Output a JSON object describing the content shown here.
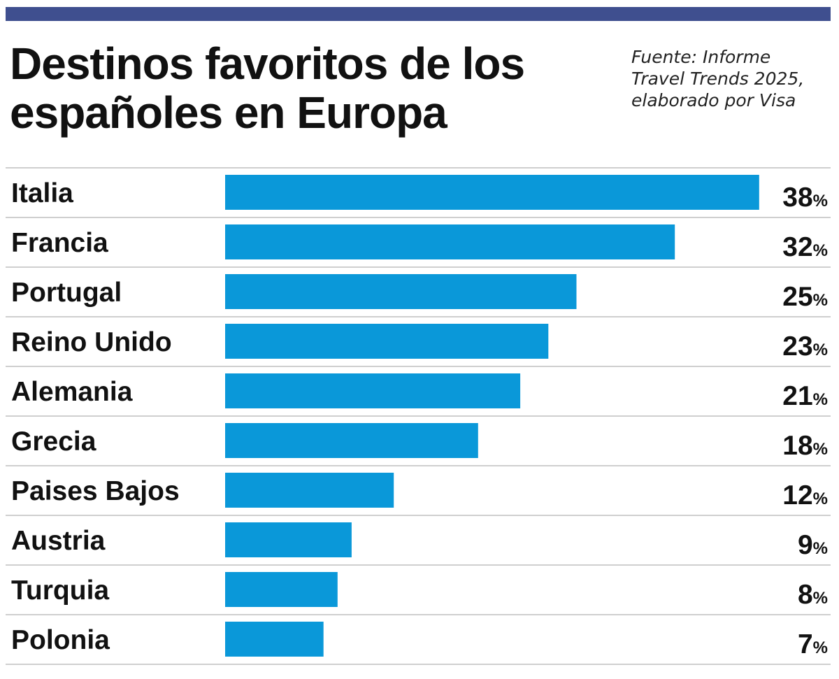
{
  "header": {
    "title_line1": "Destinos favoritos de los",
    "title_line2": "españoles en Europa",
    "source_line1": "Fuente: Informe",
    "source_line2": "Travel Trends 2025,",
    "source_line3": "elaborado por Visa"
  },
  "colors": {
    "bar": "#0a98d9",
    "top_band": "#3f4f8f"
  },
  "chart_data": {
    "type": "bar",
    "orientation": "horizontal",
    "categories": [
      "Italia",
      "Francia",
      "Portugal",
      "Reino Unido",
      "Alemania",
      "Grecia",
      "Paises Bajos",
      "Austria",
      "Turquia",
      "Polonia"
    ],
    "values": [
      38,
      32,
      25,
      23,
      21,
      18,
      12,
      9,
      8,
      7
    ],
    "unit": "%",
    "grid": false
  }
}
